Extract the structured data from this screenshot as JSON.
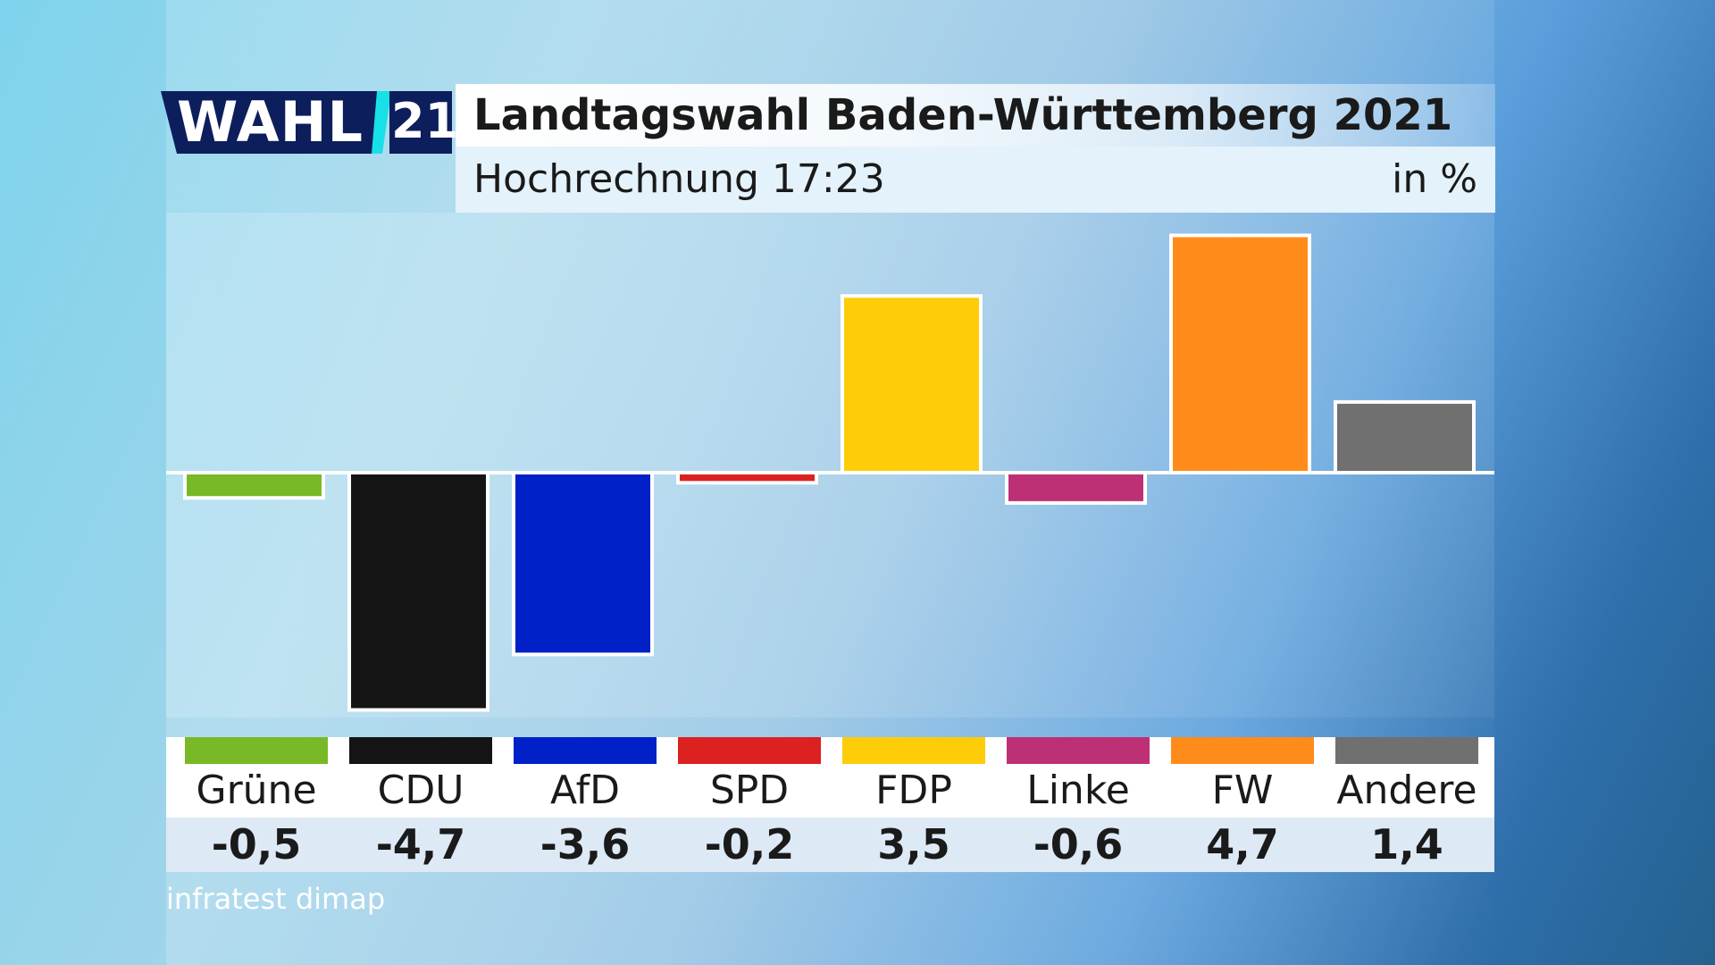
{
  "logo": {
    "word": "WAHL",
    "number": "21"
  },
  "header": {
    "title": "Landtagswahl Baden-Württemberg 2021",
    "subtitle": "Hochrechnung 17:23",
    "unit": "in %"
  },
  "source": "infratest dimap",
  "colors": {
    "logo_navy": "#0d1e5c",
    "logo_cyan": "#18e0e8",
    "baseline": "#ffffff"
  },
  "chart_data": {
    "type": "bar",
    "categories": [
      "Grüne",
      "CDU",
      "AfD",
      "SPD",
      "FDP",
      "Linke",
      "FW",
      "Andere"
    ],
    "values": [
      -0.5,
      -4.7,
      -3.6,
      -0.2,
      3.5,
      -0.6,
      4.7,
      1.4
    ],
    "value_labels": [
      "-0,5",
      "-4,7",
      "-3,6",
      "-0,2",
      "3,5",
      "-0,6",
      "4,7",
      "1,4"
    ],
    "colors": [
      "#79b928",
      "#141414",
      "#0021c8",
      "#dc2121",
      "#ffcc0a",
      "#be3075",
      "#ff8c1a",
      "#707070"
    ],
    "ylim": [
      -4.7,
      4.7
    ],
    "grid": false,
    "title": "Landtagswahl Baden-Württemberg 2021",
    "subtitle": "Hochrechnung 17:23",
    "ylabel": "in %"
  }
}
